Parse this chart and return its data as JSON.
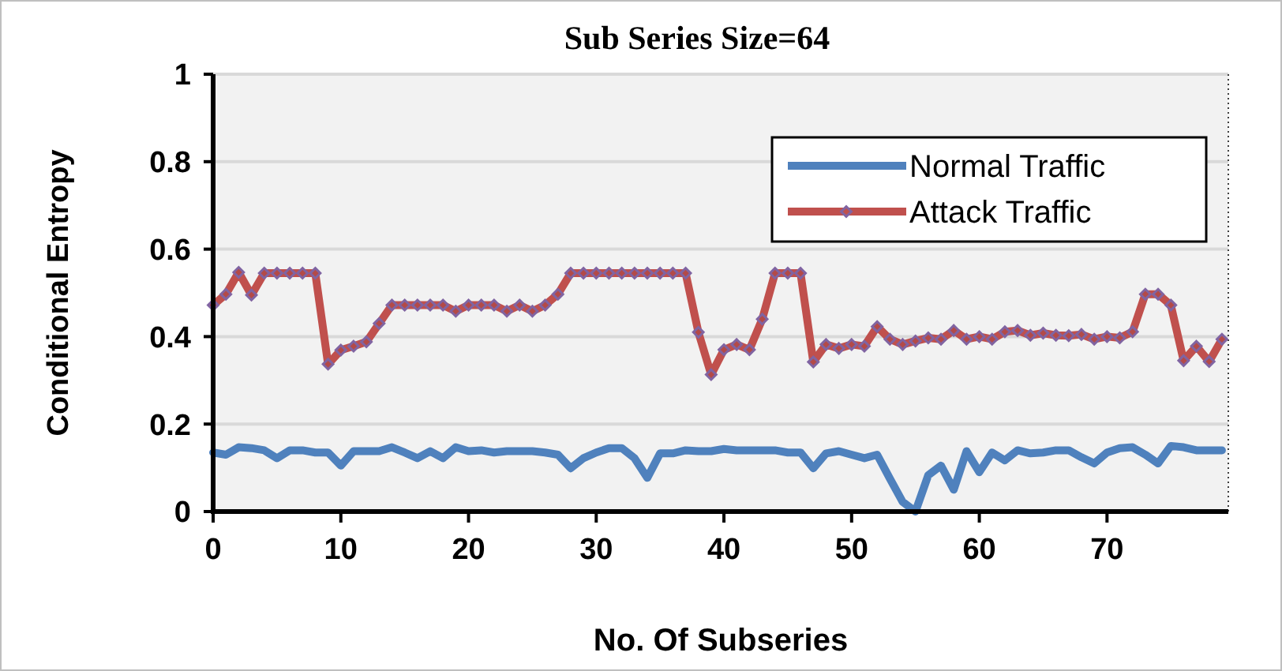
{
  "chart_data": {
    "type": "line",
    "title": "Sub Series Size=64",
    "xlabel": "No. Of Subseries",
    "ylabel": "Conditional Entropy",
    "x": [
      0,
      1,
      2,
      3,
      4,
      5,
      6,
      7,
      8,
      9,
      10,
      11,
      12,
      13,
      14,
      15,
      16,
      17,
      18,
      19,
      20,
      21,
      22,
      23,
      24,
      25,
      26,
      27,
      28,
      29,
      30,
      31,
      32,
      33,
      34,
      35,
      36,
      37,
      38,
      39,
      40,
      41,
      42,
      43,
      44,
      45,
      46,
      47,
      48,
      49,
      50,
      51,
      52,
      53,
      54,
      55,
      56,
      57,
      58,
      59,
      60,
      61,
      62,
      63,
      64,
      65,
      66,
      67,
      68,
      69,
      70,
      71,
      72,
      73,
      74,
      75,
      76,
      77,
      78,
      79
    ],
    "xlim": [
      0,
      79.5
    ],
    "xticks": [
      0,
      10,
      20,
      30,
      40,
      50,
      60,
      70
    ],
    "ylim": [
      0,
      1
    ],
    "yticks": [
      0,
      0.2,
      0.4,
      0.6,
      0.8,
      1
    ],
    "grid": "y",
    "legend": "top right",
    "series": [
      {
        "name": "Normal Traffic",
        "color": "#4f81bd",
        "marker": "none",
        "values": [
          0.135,
          0.13,
          0.147,
          0.145,
          0.14,
          0.122,
          0.14,
          0.14,
          0.135,
          0.135,
          0.105,
          0.138,
          0.138,
          0.138,
          0.147,
          0.135,
          0.122,
          0.138,
          0.122,
          0.147,
          0.138,
          0.14,
          0.135,
          0.138,
          0.138,
          0.138,
          0.135,
          0.13,
          0.099,
          0.122,
          0.135,
          0.145,
          0.145,
          0.122,
          0.077,
          0.133,
          0.133,
          0.14,
          0.138,
          0.138,
          0.143,
          0.14,
          0.14,
          0.14,
          0.14,
          0.135,
          0.135,
          0.099,
          0.133,
          0.138,
          0.13,
          0.122,
          0.13,
          0.075,
          0.022,
          0,
          0.083,
          0.105,
          0.05,
          0.138,
          0.09,
          0.135,
          0.117,
          0.14,
          0.133,
          0.135,
          0.14,
          0.14,
          0.124,
          0.11,
          0.135,
          0.145,
          0.147,
          0.13,
          0.11,
          0.15,
          0.147,
          0.14,
          0.14,
          0.14
        ]
      },
      {
        "name": "Attack Traffic",
        "color": "#c0504d",
        "marker": "diamond",
        "values": [
          0.472,
          0.497,
          0.547,
          0.495,
          0.545,
          0.545,
          0.545,
          0.545,
          0.545,
          0.337,
          0.369,
          0.378,
          0.388,
          0.43,
          0.472,
          0.472,
          0.472,
          0.472,
          0.472,
          0.458,
          0.472,
          0.472,
          0.472,
          0.458,
          0.472,
          0.458,
          0.472,
          0.497,
          0.545,
          0.545,
          0.545,
          0.545,
          0.545,
          0.545,
          0.545,
          0.545,
          0.545,
          0.545,
          0.41,
          0.313,
          0.37,
          0.382,
          0.37,
          0.44,
          0.545,
          0.545,
          0.545,
          0.342,
          0.382,
          0.373,
          0.382,
          0.378,
          0.423,
          0.394,
          0.382,
          0.39,
          0.397,
          0.394,
          0.414,
          0.394,
          0.4,
          0.394,
          0.411,
          0.414,
          0.403,
          0.408,
          0.403,
          0.402,
          0.405,
          0.394,
          0.4,
          0.397,
          0.411,
          0.497,
          0.497,
          0.472,
          0.345,
          0.378,
          0.343,
          0.394
        ]
      }
    ]
  }
}
